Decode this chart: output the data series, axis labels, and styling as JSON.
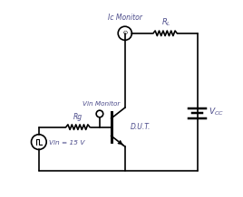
{
  "bg_color": "#ffffff",
  "line_color": "#000000",
  "text_color": "#4a4a8a",
  "fig_width": 2.68,
  "fig_height": 2.18,
  "dpi": 100,
  "Ic_monitor_label": "Ic Monitor",
  "Vin_monitor_label": "Vin Monitor",
  "Rg_label": "Rg",
  "DUT_label": "D.U.T.",
  "Vin_label": "Vin = 15 V"
}
